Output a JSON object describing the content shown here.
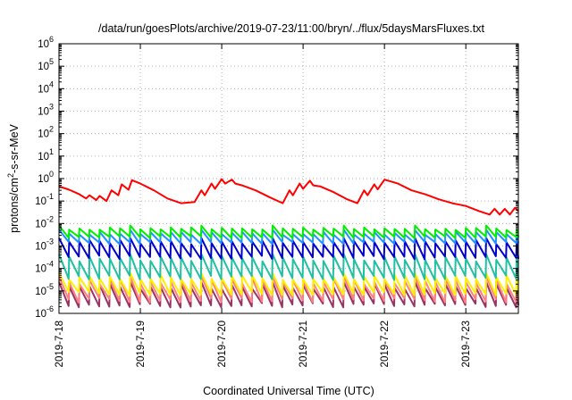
{
  "chart_data": {
    "type": "line",
    "title": "/data/run/goesPlots/archive/2019-07-23/11:00/bryn/../flux/5daysMarsFluxes.txt",
    "xlabel": "Coordinated Universal Time (UTC)",
    "ylabel": "protons/cm²-s-sr-MeV",
    "ylabel_parts": {
      "main": "protons/cm",
      "sup": "2",
      "rest": "-s-sr-MeV"
    },
    "y_scale": "log",
    "ylim": [
      1e-06,
      1000000.0
    ],
    "xlim": [
      "2019-07-18T00:00",
      "2019-07-23T15:30"
    ],
    "x_ticks": [
      "2019-7-18",
      "2019-7-19",
      "2019-7-20",
      "2019-7-21",
      "2019-7-22",
      "2019-7-23"
    ],
    "y_ticks": [
      {
        "base": "10",
        "exp": "-6",
        "value": 1e-06
      },
      {
        "base": "10",
        "exp": "-5",
        "value": 1e-05
      },
      {
        "base": "10",
        "exp": "-4",
        "value": 0.0001
      },
      {
        "base": "10",
        "exp": "-3",
        "value": 0.001
      },
      {
        "base": "10",
        "exp": "-2",
        "value": 0.01
      },
      {
        "base": "10",
        "exp": "-1",
        "value": 0.1
      },
      {
        "base": "10",
        "exp": "0",
        "value": 1
      },
      {
        "base": "10",
        "exp": "1",
        "value": 10
      },
      {
        "base": "10",
        "exp": "2",
        "value": 100
      },
      {
        "base": "10",
        "exp": "3",
        "value": 1000
      },
      {
        "base": "10",
        "exp": "4",
        "value": 10000
      },
      {
        "base": "10",
        "exp": "5",
        "value": 100000
      },
      {
        "base": "10",
        "exp": "6",
        "value": 1000000
      }
    ],
    "grid": true,
    "series": [
      {
        "color": "#ff0000",
        "x": [
          "2019-07-18T00:00",
          "2019-07-18T03:00",
          "2019-07-18T06:00",
          "2019-07-18T08:00",
          "2019-07-18T09:00",
          "2019-07-18T11:00",
          "2019-07-18T12:00",
          "2019-07-18T14:00",
          "2019-07-18T15:30",
          "2019-07-18T17:30",
          "2019-07-18T18:30",
          "2019-07-18T20:30",
          "2019-07-18T21:30",
          "2019-07-19T00:00",
          "2019-07-19T04:00",
          "2019-07-19T08:00",
          "2019-07-19T12:00",
          "2019-07-19T16:00",
          "2019-07-19T18:00",
          "2019-07-19T19:00",
          "2019-07-19T21:00",
          "2019-07-19T22:00",
          "2019-07-20T00:00",
          "2019-07-20T01:00",
          "2019-07-20T03:00",
          "2019-07-20T04:00",
          "2019-07-20T06:00",
          "2019-07-20T10:00",
          "2019-07-20T14:00",
          "2019-07-20T18:00",
          "2019-07-20T20:00",
          "2019-07-20T21:00",
          "2019-07-20T23:00",
          "2019-07-21T00:00",
          "2019-07-21T02:00",
          "2019-07-21T03:00",
          "2019-07-21T05:00",
          "2019-07-21T09:00",
          "2019-07-21T13:00",
          "2019-07-21T16:00",
          "2019-07-21T18:00",
          "2019-07-21T19:00",
          "2019-07-21T21:00",
          "2019-07-21T22:00",
          "2019-07-22T00:00",
          "2019-07-22T04:00",
          "2019-07-22T08:00",
          "2019-07-22T12:00",
          "2019-07-22T16:00",
          "2019-07-22T20:00",
          "2019-07-23T00:00",
          "2019-07-23T04:00",
          "2019-07-23T07:00",
          "2019-07-23T08:30",
          "2019-07-23T10:00",
          "2019-07-23T11:30",
          "2019-07-23T13:00",
          "2019-07-23T14:30",
          "2019-07-23T15:30"
        ],
        "values": [
          0.45,
          0.32,
          0.2,
          0.13,
          0.18,
          0.11,
          0.17,
          0.1,
          0.3,
          0.18,
          0.55,
          0.32,
          0.85,
          0.6,
          0.3,
          0.13,
          0.08,
          0.09,
          0.3,
          0.18,
          0.6,
          0.35,
          0.95,
          0.6,
          0.9,
          0.6,
          0.5,
          0.3,
          0.15,
          0.08,
          0.3,
          0.18,
          0.6,
          0.35,
          0.8,
          0.5,
          0.45,
          0.25,
          0.12,
          0.08,
          0.3,
          0.18,
          0.55,
          0.33,
          0.9,
          0.6,
          0.3,
          0.2,
          0.12,
          0.08,
          0.06,
          0.035,
          0.025,
          0.045,
          0.025,
          0.045,
          0.025,
          0.05,
          0.035
        ]
      },
      {
        "color": "#00ee00",
        "x": [
          "2019-07-18T00:00",
          "2019-07-23T15:30"
        ],
        "pattern": {
          "kind": "sawtooth",
          "low": 0.0022,
          "high": 0.0065,
          "period_hours": 3
        },
        "values": [
          0.004,
          0.003
        ]
      },
      {
        "color": "#1e90ff",
        "x": [
          "2019-07-18T00:00",
          "2019-07-23T15:30"
        ],
        "pattern": {
          "kind": "sawtooth",
          "low": 0.0012,
          "high": 0.0042,
          "period_hours": 3
        },
        "values": [
          0.0028,
          0.002
        ]
      },
      {
        "color": "#0000cc",
        "x": [
          "2019-07-18T00:00",
          "2019-07-23T15:30"
        ],
        "pattern": {
          "kind": "sawtooth",
          "low": 0.00025,
          "high": 0.0018,
          "period_hours": 3
        },
        "values": [
          0.0009,
          0.0006
        ]
      },
      {
        "color": "#20c0a0",
        "x": [
          "2019-07-18T00:00",
          "2019-07-23T15:30"
        ],
        "pattern": {
          "kind": "sawtooth",
          "low": 3e-05,
          "high": 0.00035,
          "period_hours": 3
        },
        "values": [
          0.0001,
          8e-05
        ]
      },
      {
        "color": "#ffee00",
        "x": [
          "2019-07-18T00:00",
          "2019-07-23T15:30"
        ],
        "pattern": {
          "kind": "sawtooth",
          "low": 6e-06,
          "high": 5e-05,
          "period_hours": 3
        },
        "values": [
          2e-05,
          1.5e-05
        ]
      },
      {
        "color": "#ff8080",
        "x": [
          "2019-07-18T00:00",
          "2019-07-23T15:30"
        ],
        "pattern": {
          "kind": "sawtooth",
          "low": 3e-06,
          "high": 3.5e-05,
          "period_hours": 3
        },
        "values": [
          1.2e-05,
          1e-05
        ]
      },
      {
        "color": "#993366",
        "x": [
          "2019-07-18T00:00",
          "2019-07-23T15:30"
        ],
        "pattern": {
          "kind": "sawtooth",
          "low": 1.8e-06,
          "high": 2e-05,
          "period_hours": 3
        },
        "values": [
          8e-06,
          6e-06
        ]
      }
    ]
  }
}
